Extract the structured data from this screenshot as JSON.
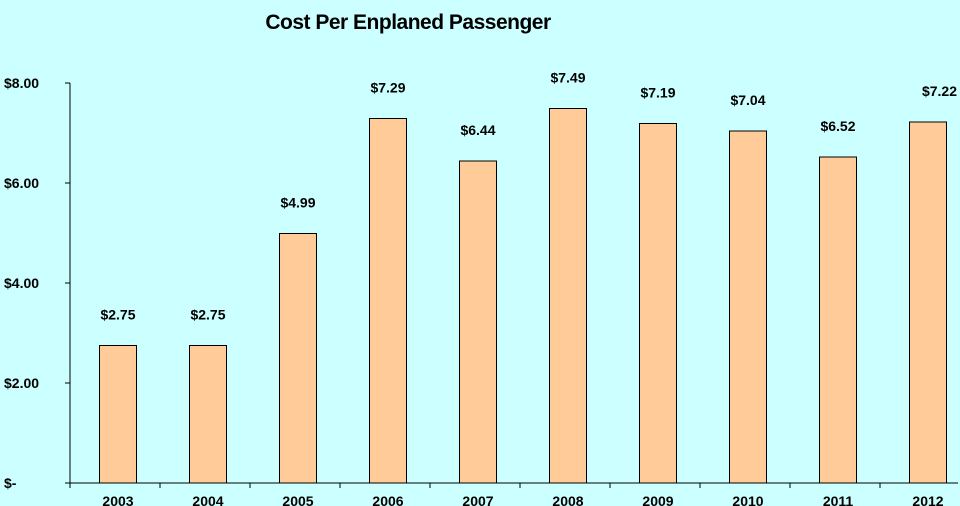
{
  "chart_data": {
    "type": "bar",
    "title": "Cost Per Enplaned Passenger",
    "xlabel": "",
    "ylabel": "",
    "categories": [
      "2003",
      "2004",
      "2005",
      "2006",
      "2007",
      "2008",
      "2009",
      "2010",
      "2011",
      "2012"
    ],
    "values": [
      2.75,
      2.75,
      4.99,
      7.29,
      6.44,
      7.49,
      7.19,
      7.04,
      6.52,
      7.22
    ],
    "data_labels": [
      "$2.75",
      "$2.75",
      "$4.99",
      "$7.29",
      "$6.44",
      "$7.49",
      "$7.19",
      "$7.04",
      "$6.52",
      "$7.22"
    ],
    "yticks": [
      0,
      2,
      4,
      6,
      8
    ],
    "ytick_labels": [
      "$-",
      "$2.00",
      "$4.00",
      "$6.00",
      "$8.00"
    ],
    "ylim": [
      0,
      8
    ],
    "grid": false,
    "legend": false,
    "colors": {
      "plot_background": "#ccffff",
      "bar_fill": "#ffcc99",
      "bar_stroke": "#000000",
      "axis": "#000000"
    }
  }
}
